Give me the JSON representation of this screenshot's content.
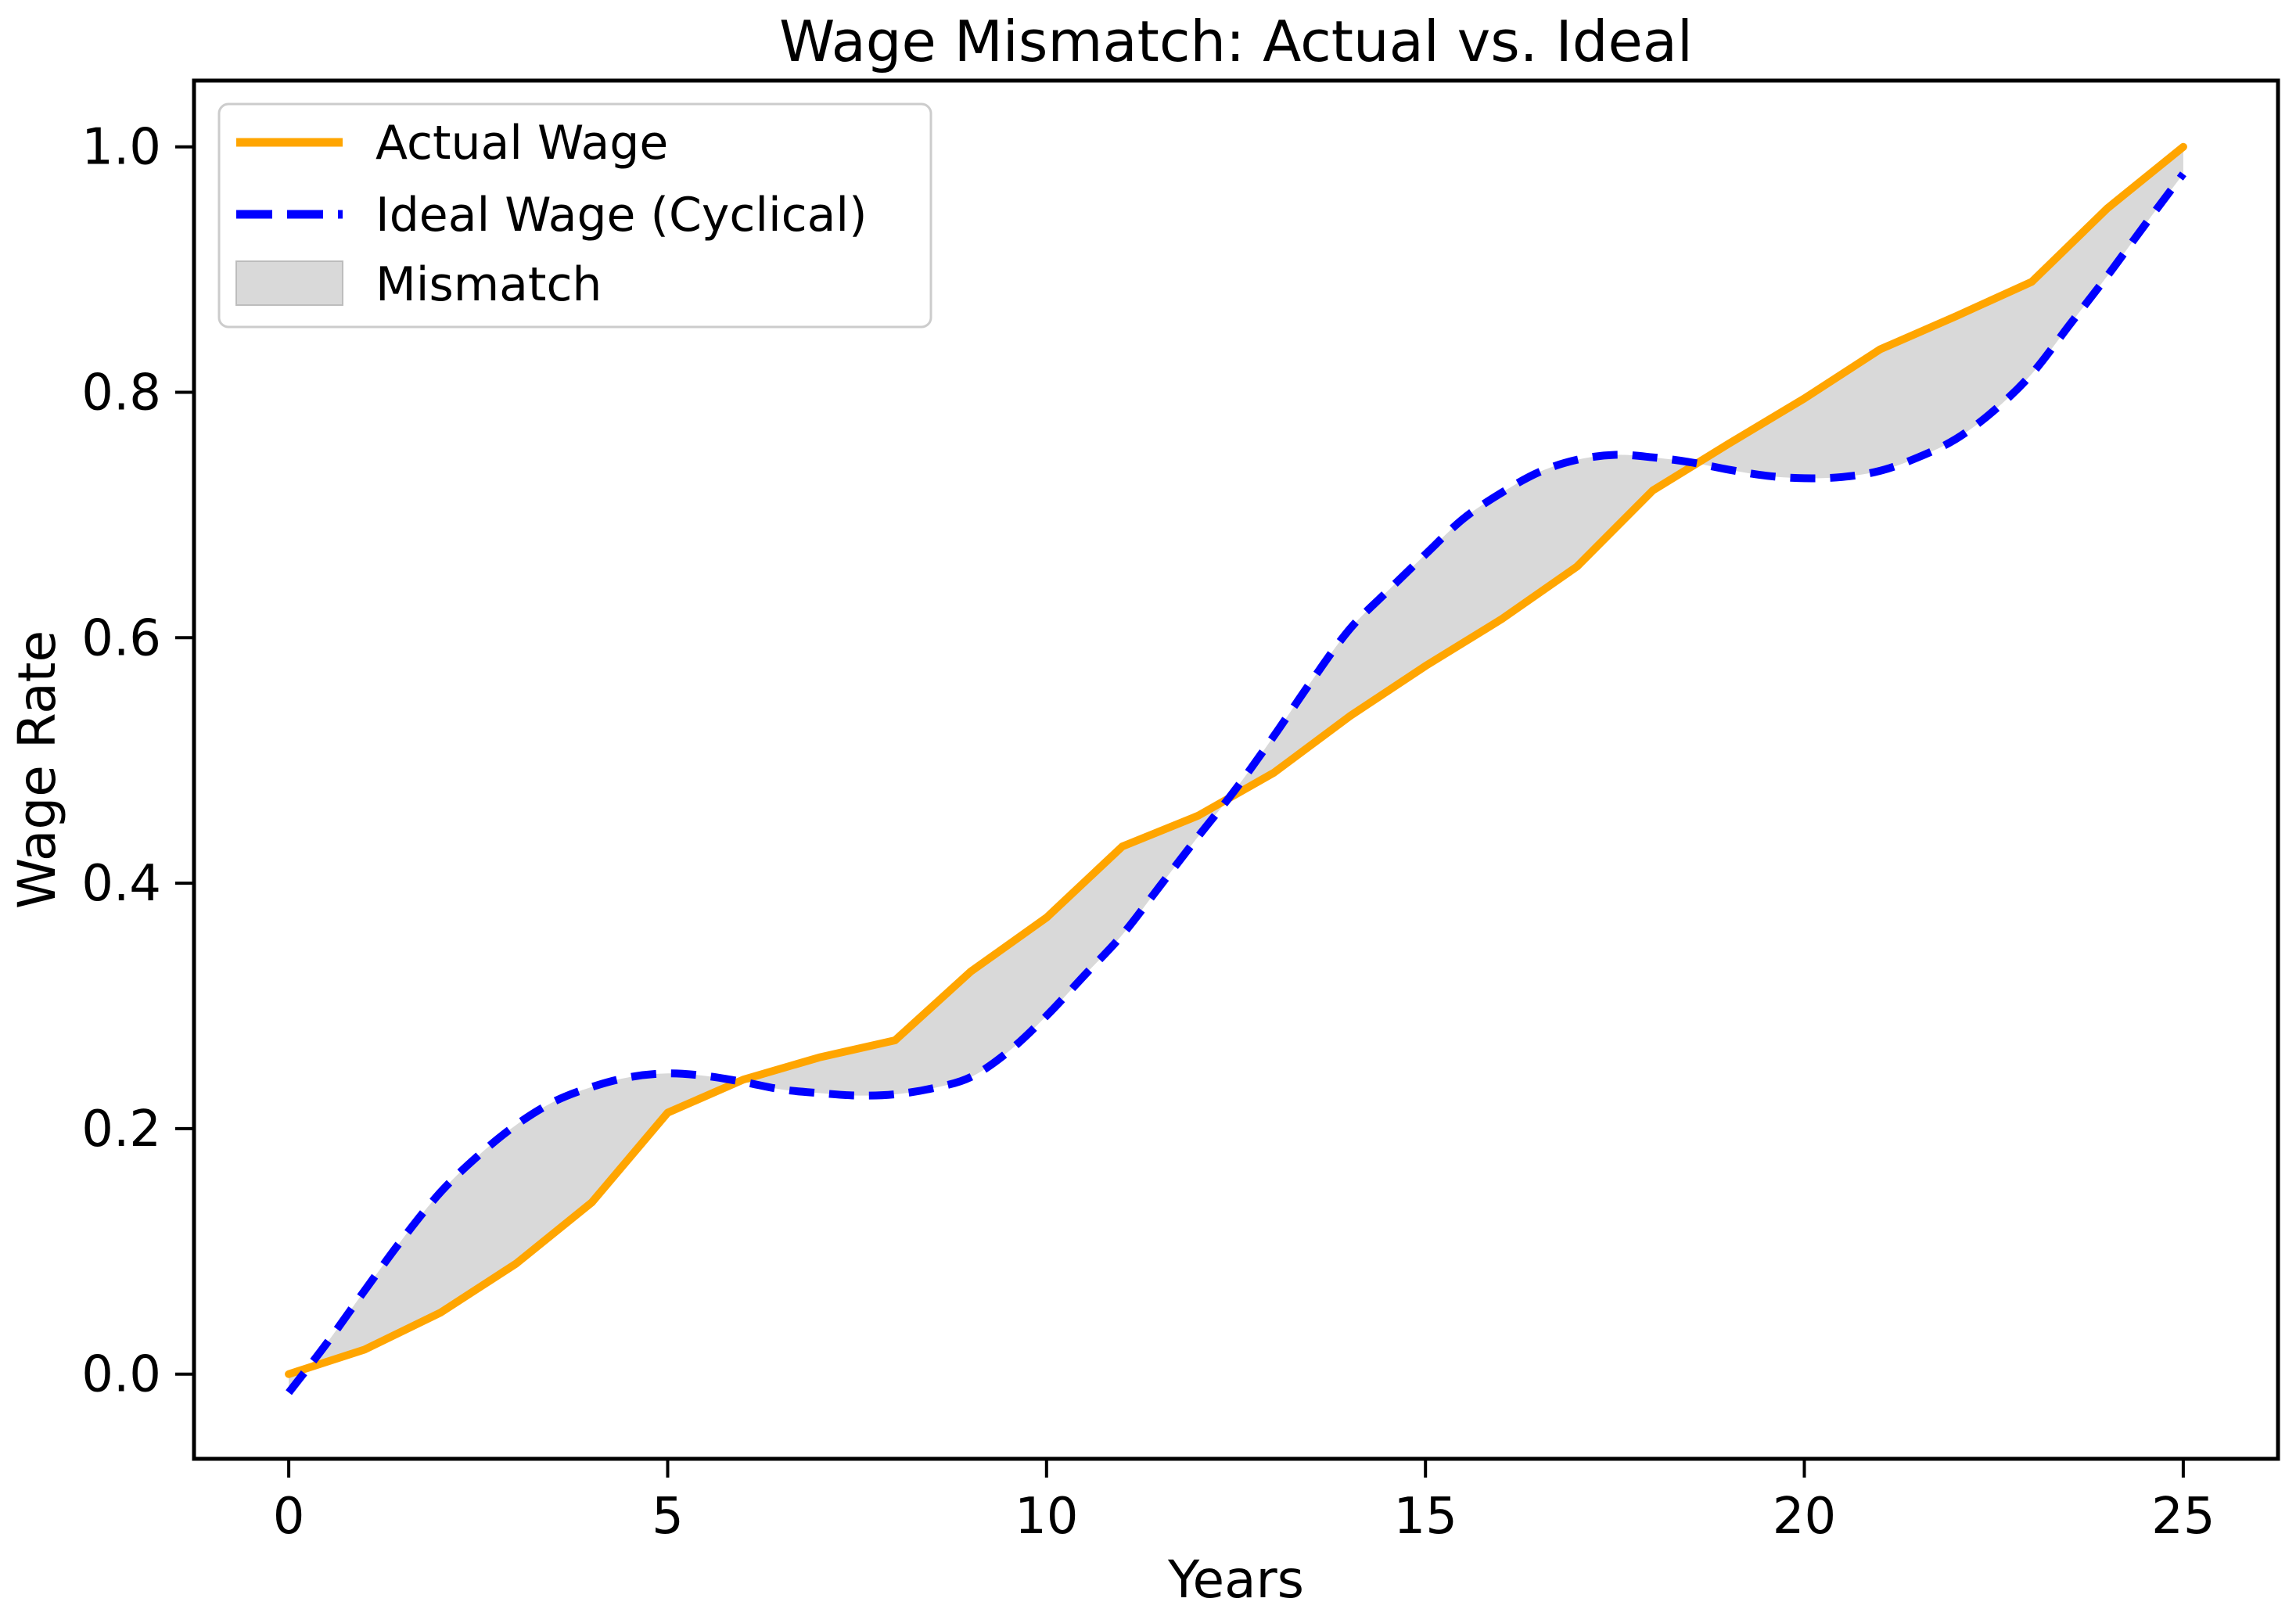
{
  "title": "Wage Mismatch: Actual vs. Ideal",
  "x_axis": {
    "label": "Years",
    "tick_labels": [
      "0",
      "5",
      "10",
      "15",
      "20",
      "25"
    ],
    "tick_values": [
      0,
      5,
      10,
      15,
      20,
      25
    ]
  },
  "y_axis": {
    "label": "Wage Rate",
    "tick_labels": [
      "0.0",
      "0.2",
      "0.4",
      "0.6",
      "0.8",
      "1.0"
    ],
    "tick_values": [
      0.0,
      0.2,
      0.4,
      0.6,
      0.8,
      1.0
    ]
  },
  "legend": {
    "items": [
      {
        "label": "Actual Wage",
        "swatch": "solid-line",
        "color": "#FFA500"
      },
      {
        "label": "Ideal Wage (Cyclical)",
        "swatch": "dashed-line",
        "color": "#0000FF"
      },
      {
        "label": "Mismatch",
        "swatch": "patch",
        "color": "#D9D9D9"
      }
    ],
    "border_color": "#CCCCCC",
    "background_color": "#FFFFFF"
  },
  "colors": {
    "actual_line": "#FFA500",
    "ideal_line": "#0000FF",
    "mismatch_fill": "#D9D9D9",
    "axis": "#000000",
    "text": "#000000"
  },
  "chart_data": {
    "type": "line",
    "title": "Wage Mismatch: Actual vs. Ideal",
    "xlabel": "Years",
    "ylabel": "Wage Rate",
    "xlim": [
      -1.25,
      26.25
    ],
    "ylim": [
      -0.069,
      1.054
    ],
    "grid": false,
    "legend_position": "upper left",
    "series": [
      {
        "name": "Actual Wage",
        "style": "solid",
        "color": "#FFA500",
        "line_width": 10,
        "x": [
          0,
          1,
          2,
          3,
          4,
          5,
          6,
          7,
          8,
          9,
          10,
          11,
          12,
          13,
          14,
          15,
          16,
          17,
          18,
          19,
          20,
          21,
          22,
          23,
          24,
          25
        ],
        "y": [
          0.0,
          0.02,
          0.05,
          0.09,
          0.14,
          0.213,
          0.24,
          0.258,
          0.272,
          0.328,
          0.372,
          0.43,
          0.455,
          0.49,
          0.536,
          0.577,
          0.615,
          0.658,
          0.72,
          0.758,
          0.795,
          0.835,
          0.862,
          0.89,
          0.95,
          1.0
        ]
      },
      {
        "name": "Ideal Wage (Cyclical)",
        "style": "dashed",
        "color": "#0000FF",
        "line_width": 10,
        "x": [
          0,
          0.5,
          1,
          1.5,
          2,
          2.5,
          3,
          3.5,
          4,
          4.5,
          5,
          5.5,
          6,
          6.5,
          7,
          7.5,
          8,
          8.5,
          9,
          9.5,
          10,
          10.5,
          11,
          11.5,
          12,
          12.5,
          13,
          13.5,
          14,
          14.5,
          15,
          15.5,
          16,
          16.5,
          17,
          17.5,
          18,
          18.5,
          19,
          19.5,
          20,
          20.5,
          21,
          21.5,
          22,
          22.5,
          23,
          23.5,
          24,
          24.5,
          25
        ],
        "y": [
          -0.015,
          0.025,
          0.068,
          0.11,
          0.148,
          0.178,
          0.203,
          0.222,
          0.234,
          0.242,
          0.245,
          0.243,
          0.238,
          0.232,
          0.229,
          0.227,
          0.228,
          0.233,
          0.242,
          0.263,
          0.292,
          0.325,
          0.358,
          0.398,
          0.438,
          0.477,
          0.52,
          0.565,
          0.607,
          0.638,
          0.668,
          0.697,
          0.718,
          0.735,
          0.745,
          0.749,
          0.747,
          0.743,
          0.737,
          0.732,
          0.73,
          0.731,
          0.736,
          0.747,
          0.762,
          0.785,
          0.815,
          0.855,
          0.895,
          0.937,
          0.978
        ]
      },
      {
        "name": "Mismatch",
        "type": "fill_between",
        "between": [
          "Actual Wage",
          "Ideal Wage (Cyclical)"
        ],
        "color": "#D9D9D9"
      }
    ]
  }
}
